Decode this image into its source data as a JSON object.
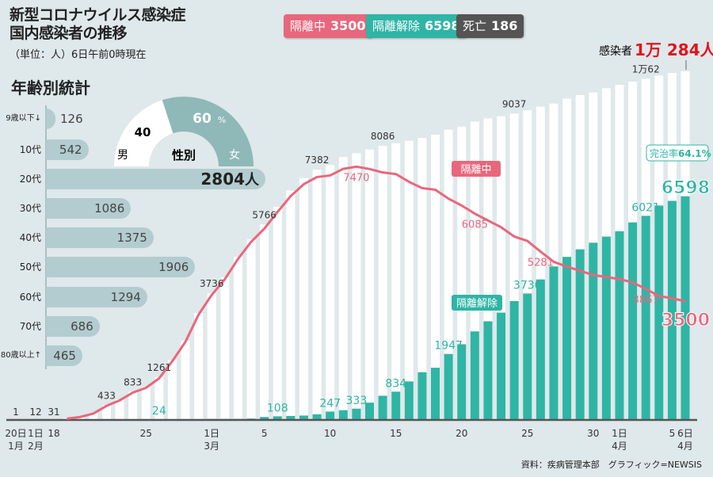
{
  "header": {
    "title_line1": "新型コロナウイルス感染症",
    "title_line2": "国内感染者の推移",
    "subtitle": "（単位：人）6日午前0時現在"
  },
  "pills": [
    {
      "label": "隔離中",
      "value": "3500",
      "color": "#e8677d"
    },
    {
      "label": "隔離解除",
      "value": "6598",
      "color": "#2fb5a5"
    },
    {
      "label": "死亡",
      "value": "186",
      "color": "#545454"
    }
  ],
  "age": {
    "title": "年齢別統計",
    "unit": "人",
    "rows": [
      {
        "label": "9歳以下↓",
        "value": 126
      },
      {
        "label": "10代",
        "value": 542
      },
      {
        "label": "20代",
        "value": 2804
      },
      {
        "label": "30代",
        "value": 1086
      },
      {
        "label": "40代",
        "value": 1375
      },
      {
        "label": "50代",
        "value": 1906
      },
      {
        "label": "60代",
        "value": 1294
      },
      {
        "label": "70代",
        "value": 686
      },
      {
        "label": "80歳以上↑",
        "value": 465
      }
    ]
  },
  "gender": {
    "center_label": "性別",
    "male_label": "男",
    "male_value": "40",
    "female_label": "女",
    "female_value": "60",
    "percent": "%",
    "male_color": "#ffffff",
    "female_color": "#8fb8b8"
  },
  "chart_data": {
    "type": "bar+line",
    "dates": [
      "2/18",
      "2/19",
      "2/20",
      "2/21",
      "2/22",
      "2/23",
      "2/24",
      "2/25",
      "2/26",
      "2/27",
      "2/28",
      "2/29",
      "3/1",
      "3/2",
      "3/3",
      "3/4",
      "3/5",
      "3/6",
      "3/7",
      "3/8",
      "3/9",
      "3/10",
      "3/11",
      "3/12",
      "3/13",
      "3/14",
      "3/15",
      "3/16",
      "3/17",
      "3/18",
      "3/19",
      "3/20",
      "3/21",
      "3/22",
      "3/23",
      "3/24",
      "3/25",
      "3/26",
      "3/27",
      "3/28",
      "3/29",
      "3/30",
      "3/31",
      "4/1",
      "4/2",
      "4/3",
      "4/4",
      "4/5",
      "4/6"
    ],
    "early_points": [
      {
        "date": "1/20",
        "value": "1"
      },
      {
        "date": "2/1",
        "value": "12"
      }
    ],
    "series": [
      {
        "name": "感染者",
        "type": "bar",
        "color": "#ffffff",
        "values": [
          31,
          51,
          104,
          204,
          433,
          602,
          833,
          977,
          1261,
          1766,
          2337,
          3150,
          3736,
          4212,
          4812,
          5328,
          5766,
          6284,
          6767,
          7134,
          7382,
          7513,
          7755,
          7869,
          7979,
          8086,
          8162,
          8236,
          8320,
          8413,
          8565,
          8652,
          8799,
          8897,
          8961,
          9037,
          9137,
          9241,
          9332,
          9478,
          9583,
          9661,
          9786,
          9887,
          9976,
          10062,
          10156,
          10237,
          10284
        ]
      },
      {
        "name": "隔離解除",
        "type": "bar",
        "color": "#2fb5a5",
        "values": [
          12,
          12,
          16,
          16,
          16,
          18,
          18,
          18,
          24,
          24,
          24,
          24,
          30,
          30,
          31,
          41,
          88,
          108,
          118,
          130,
          166,
          247,
          288,
          333,
          510,
          714,
          834,
          1137,
          1407,
          1540,
          1947,
          2233,
          2612,
          2909,
          3166,
          3507,
          3730,
          4144,
          4528,
          4811,
          5033,
          5228,
          5408,
          5567,
          5828,
          6021,
          6325,
          6463,
          6598
        ]
      },
      {
        "name": "隔離中",
        "type": "line",
        "color": "#e8677d",
        "values": [
          19,
          39,
          88,
          188,
          414,
          578,
          806,
          947,
          1227,
          1731,
          2302,
          3107,
          3689,
          4152,
          4750,
          5255,
          5643,
          6134,
          6601,
          6954,
          7165,
          7212,
          7407,
          7470,
          7402,
          7300,
          7253,
          7024,
          6838,
          6789,
          6527,
          6325,
          6085,
          5884,
          5684,
          5410,
          5281,
          4966,
          4665,
          4523,
          4398,
          4275,
          4216,
          4155,
          4057,
          3867,
          3654,
          3590,
          3500
        ]
      }
    ],
    "data_labels": {
      "confirmed": [
        {
          "i": 4,
          "t": "433"
        },
        {
          "i": 6,
          "t": "833"
        },
        {
          "i": 8,
          "t": "1261"
        },
        {
          "i": 12,
          "t": "3736"
        },
        {
          "i": 16,
          "t": "5766"
        },
        {
          "i": 20,
          "t": "7382"
        },
        {
          "i": 25,
          "t": "8086"
        },
        {
          "i": 35,
          "t": "9037"
        },
        {
          "i": 45,
          "t": "1万62"
        }
      ],
      "released": [
        {
          "i": 8,
          "t": "24"
        },
        {
          "i": 17,
          "t": "108"
        },
        {
          "i": 21,
          "t": "247"
        },
        {
          "i": 23,
          "t": "333"
        },
        {
          "i": 26,
          "t": "834"
        },
        {
          "i": 30,
          "t": "1947"
        },
        {
          "i": 36,
          "t": "3730"
        },
        {
          "i": 45,
          "t": "6021"
        }
      ],
      "isolated": [
        {
          "i": 23,
          "t": "7470"
        },
        {
          "i": 32,
          "t": "6085"
        },
        {
          "i": 37,
          "t": "5281"
        },
        {
          "i": 45,
          "t": "3867"
        }
      ]
    },
    "x_ticks": [
      {
        "i": -3,
        "l1": "20日",
        "l2": "1月"
      },
      {
        "i": -2,
        "l1": "1日",
        "l2": "2月"
      },
      {
        "i": 0,
        "l1": "18",
        "l2": ""
      },
      {
        "i": 7,
        "l1": "25",
        "l2": ""
      },
      {
        "i": 12,
        "l1": "1日",
        "l2": "3月"
      },
      {
        "i": 16,
        "l1": "5",
        "l2": ""
      },
      {
        "i": 21,
        "l1": "10",
        "l2": ""
      },
      {
        "i": 26,
        "l1": "15",
        "l2": ""
      },
      {
        "i": 31,
        "l1": "20",
        "l2": ""
      },
      {
        "i": 36,
        "l1": "25",
        "l2": ""
      },
      {
        "i": 41,
        "l1": "30",
        "l2": ""
      },
      {
        "i": 43,
        "l1": "1日",
        "l2": "4月"
      },
      {
        "i": 47,
        "l1": "5",
        "l2": ""
      },
      {
        "i": 48,
        "l1": "6日",
        "l2": "4月"
      }
    ],
    "annotations": {
      "total_label": "感染者",
      "total_value": "1万 284人",
      "isolated_tag": "隔離中",
      "released_tag": "隔離解除",
      "recovery_rate_label": "完治率",
      "recovery_rate_value": "64.1%",
      "last_released": "6598",
      "last_isolated": "3500"
    }
  },
  "footer": {
    "credit": "資料：疾病管理本部　グラフィック=NEWSIS"
  }
}
